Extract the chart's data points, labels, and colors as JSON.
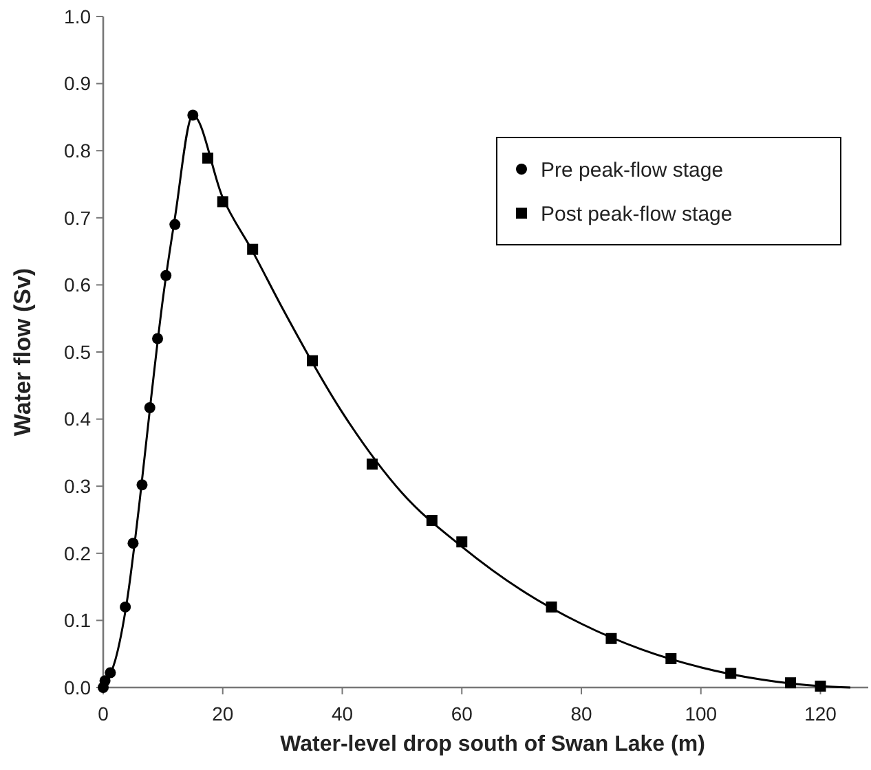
{
  "chart_data": {
    "type": "scatter",
    "xlabel": "Water-level drop south of Swan Lake (m)",
    "ylabel": "Water flow (Sv)",
    "xlim": [
      0,
      128
    ],
    "ylim": [
      0,
      1
    ],
    "xticks": [
      0,
      20,
      40,
      60,
      80,
      100,
      120
    ],
    "yticks": [
      {
        "value": 0,
        "label": "0.0"
      },
      {
        "value": 0.1,
        "label": "0.1"
      },
      {
        "value": 0.2,
        "label": "0.2"
      },
      {
        "value": 0.3,
        "label": "0.3"
      },
      {
        "value": 0.4,
        "label": "0.4"
      },
      {
        "value": 0.5,
        "label": "0.5"
      },
      {
        "value": 0.6,
        "label": "0.6"
      },
      {
        "value": 0.7,
        "label": "0.7"
      },
      {
        "value": 0.8,
        "label": "0.8"
      },
      {
        "value": 0.9,
        "label": "0.9"
      },
      {
        "value": 1,
        "label": "1.0"
      }
    ],
    "grid": false,
    "legend": "top right",
    "series": [
      {
        "type": "line",
        "color": "#000000",
        "marker": "none",
        "x": [
          0,
          1,
          2,
          4,
          6,
          8,
          10,
          12,
          15,
          20,
          25,
          30,
          40,
          50,
          60,
          70,
          80,
          90,
          100,
          110,
          120,
          125
        ],
        "values": [
          0,
          0.015,
          0.04,
          0.13,
          0.27,
          0.43,
          0.58,
          0.7,
          0.853,
          0.73,
          0.65,
          0.565,
          0.41,
          0.29,
          0.21,
          0.145,
          0.095,
          0.057,
          0.03,
          0.012,
          0.002,
          0
        ]
      },
      {
        "name": "Pre peak-flow stage",
        "color": "#000000",
        "marker": "circle",
        "x": [
          0,
          0.3,
          1.2,
          3.7,
          5,
          6.5,
          7.8,
          9.1,
          10.5,
          12,
          15
        ],
        "values": [
          0,
          0.01,
          0.022,
          0.12,
          0.215,
          0.302,
          0.417,
          0.52,
          0.614,
          0.69,
          0.853
        ]
      },
      {
        "name": "Post peak-flow stage",
        "color": "#000000",
        "marker": "square",
        "x": [
          17.5,
          20,
          25,
          35,
          45,
          55,
          60,
          75,
          85,
          95,
          105,
          115,
          120
        ],
        "values": [
          0.789,
          0.724,
          0.653,
          0.487,
          0.333,
          0.249,
          0.217,
          0.12,
          0.073,
          0.043,
          0.021,
          0.007,
          0.002
        ]
      }
    ]
  }
}
